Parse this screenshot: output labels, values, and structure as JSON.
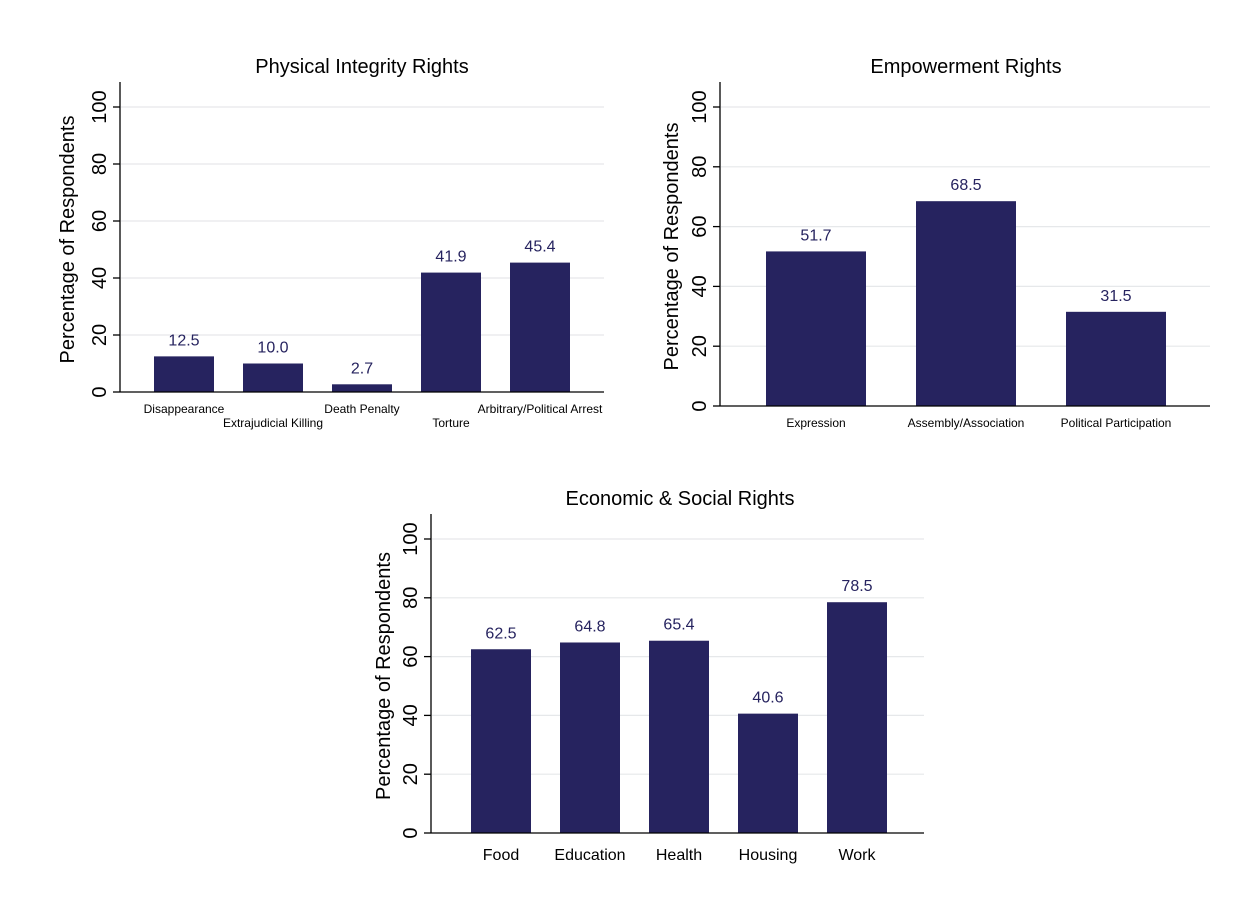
{
  "chart_data": [
    {
      "type": "bar",
      "title": "Physical Integrity Rights",
      "ylabel": "Percentage of Respondents",
      "xlabel": "",
      "ylim": [
        0,
        100
      ],
      "yticks": [
        0,
        20,
        40,
        60,
        80,
        100
      ],
      "grid": true,
      "staggered_labels": true,
      "categories": [
        "Disappearance",
        "Extrajudicial Killing",
        "Death Penalty",
        "Torture",
        "Arbitrary/Political Arrest"
      ],
      "values": [
        12.5,
        10.0,
        2.7,
        41.9,
        45.4
      ],
      "value_labels": [
        "12.5",
        "10.0",
        "2.7",
        "41.9",
        "45.4"
      ]
    },
    {
      "type": "bar",
      "title": "Empowerment Rights",
      "ylabel": "Percentage of Respondents",
      "xlabel": "",
      "ylim": [
        0,
        100
      ],
      "yticks": [
        0,
        20,
        40,
        60,
        80,
        100
      ],
      "grid": true,
      "staggered_labels": false,
      "categories": [
        "Expression",
        "Assembly/Association",
        "Political Participation"
      ],
      "values": [
        51.7,
        68.5,
        31.5
      ],
      "value_labels": [
        "51.7",
        "68.5",
        "31.5"
      ]
    },
    {
      "type": "bar",
      "title": "Economic & Social Rights",
      "ylabel": "Percentage of Respondents",
      "xlabel": "",
      "ylim": [
        0,
        100
      ],
      "yticks": [
        0,
        20,
        40,
        60,
        80,
        100
      ],
      "grid": true,
      "staggered_labels": false,
      "categories": [
        "Food",
        "Education",
        "Health",
        "Housing",
        "Work"
      ],
      "values": [
        62.5,
        64.8,
        65.4,
        40.6,
        78.5
      ],
      "value_labels": [
        "62.5",
        "64.8",
        "65.4",
        "40.6",
        "78.5"
      ]
    }
  ],
  "colors": {
    "bar": "#26235f",
    "value_label": "#26235f",
    "grid": "#e6e8ea",
    "axis": "#000000",
    "text": "#000000"
  }
}
